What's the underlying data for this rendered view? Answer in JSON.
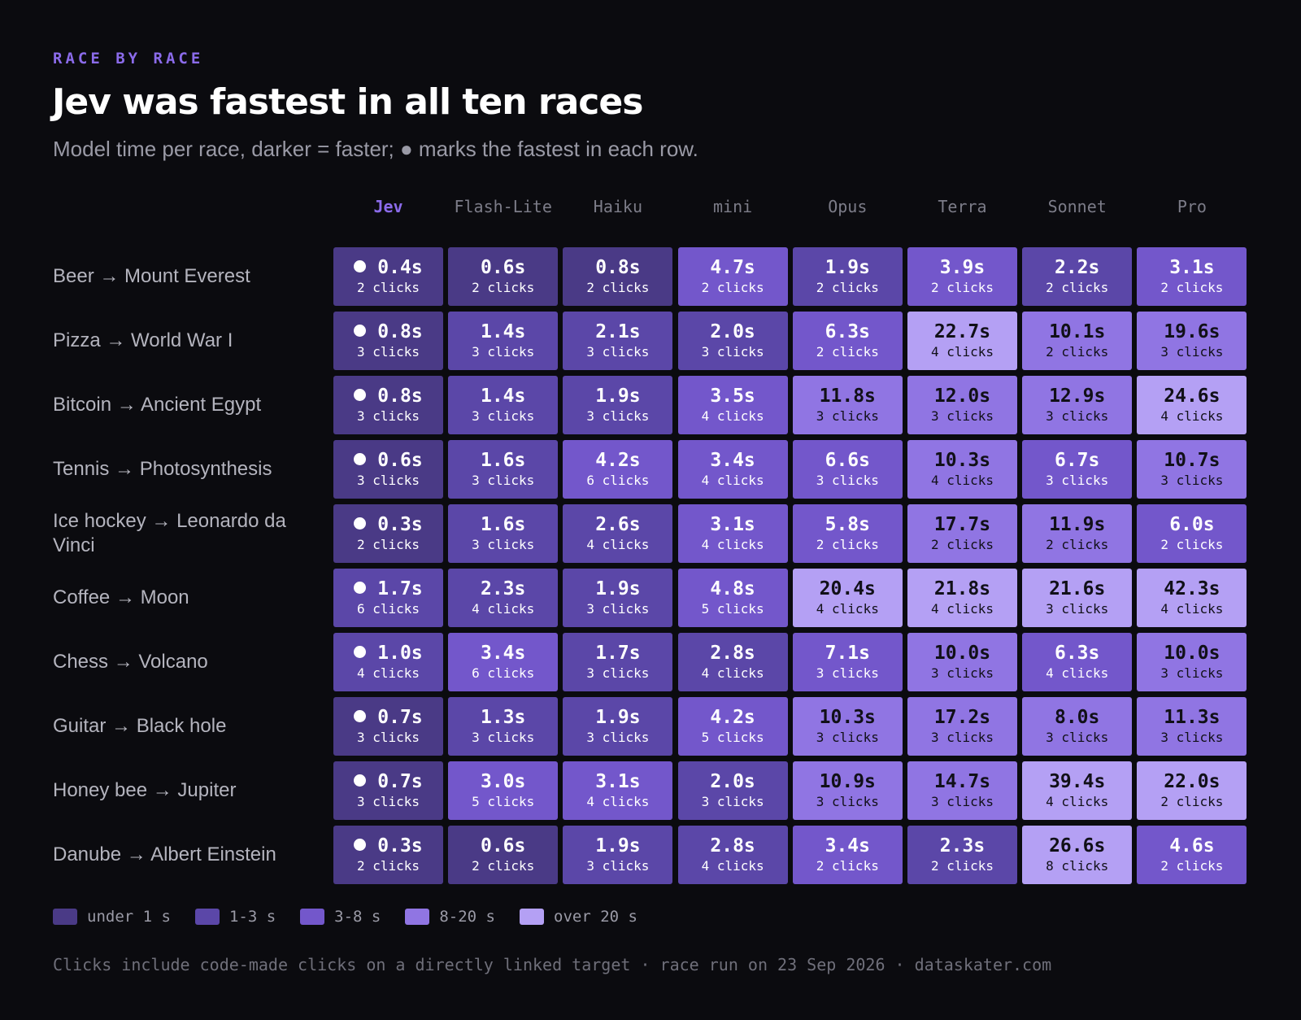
{
  "header": {
    "kicker": "RACE BY RACE",
    "title": "Jev was fastest in all ten races",
    "subtitle": "Model time per race, darker = faster; ● marks the fastest in each row."
  },
  "chart_data": {
    "type": "heatmap",
    "title": "Jev was fastest in all ten races",
    "subtitle": "Model time per race, darker = faster; ● marks the fastest in each row.",
    "columns": [
      "Jev",
      "Flash-Lite",
      "Haiku",
      "mini",
      "Opus",
      "Terra",
      "Sonnet",
      "Pro"
    ],
    "highlight_column": "Jev",
    "rows": [
      "Beer → Mount Everest",
      "Pizza → World War I",
      "Bitcoin → Ancient Egypt",
      "Tennis → Photosynthesis",
      "Ice hockey → Leonardo da Vinci",
      "Coffee → Moon",
      "Chess → Volcano",
      "Guitar → Black hole",
      "Honey bee → Jupiter",
      "Danube → Albert Einstein"
    ],
    "times_s": [
      [
        0.4,
        0.6,
        0.8,
        4.7,
        1.9,
        3.9,
        2.2,
        3.1
      ],
      [
        0.8,
        1.4,
        2.1,
        2.0,
        6.3,
        22.7,
        10.1,
        19.6
      ],
      [
        0.8,
        1.4,
        1.9,
        3.5,
        11.8,
        12.0,
        12.9,
        24.6
      ],
      [
        0.6,
        1.6,
        4.2,
        3.4,
        6.6,
        10.3,
        6.7,
        10.7
      ],
      [
        0.3,
        1.6,
        2.6,
        3.1,
        5.8,
        17.7,
        11.9,
        6.0
      ],
      [
        1.7,
        2.3,
        1.9,
        4.8,
        20.4,
        21.8,
        21.6,
        42.3
      ],
      [
        1.0,
        3.4,
        1.7,
        2.8,
        7.1,
        10.0,
        6.3,
        10.0
      ],
      [
        0.7,
        1.3,
        1.9,
        4.2,
        10.3,
        17.2,
        8.0,
        11.3
      ],
      [
        0.7,
        3.0,
        3.1,
        2.0,
        10.9,
        14.7,
        39.4,
        22.0
      ],
      [
        0.3,
        0.6,
        1.9,
        2.8,
        3.4,
        2.3,
        26.6,
        4.6
      ]
    ],
    "clicks": [
      [
        2,
        2,
        2,
        2,
        2,
        2,
        2,
        2
      ],
      [
        3,
        3,
        3,
        3,
        2,
        4,
        2,
        3
      ],
      [
        3,
        3,
        3,
        4,
        3,
        3,
        3,
        4
      ],
      [
        3,
        3,
        6,
        4,
        3,
        4,
        3,
        3
      ],
      [
        2,
        3,
        4,
        4,
        2,
        2,
        2,
        2
      ],
      [
        6,
        4,
        3,
        5,
        4,
        4,
        3,
        4
      ],
      [
        4,
        6,
        3,
        4,
        3,
        3,
        4,
        3
      ],
      [
        3,
        3,
        3,
        5,
        3,
        3,
        3,
        3
      ],
      [
        3,
        5,
        4,
        3,
        3,
        3,
        4,
        2
      ],
      [
        2,
        2,
        3,
        4,
        2,
        2,
        8,
        2
      ]
    ],
    "time_unit": "s",
    "clicks_unit": "clicks",
    "bins": [
      {
        "label": "under 1 s",
        "max": 1,
        "color": "#4a3a86",
        "text": "#ffffff"
      },
      {
        "label": "1-3 s",
        "max": 3,
        "color": "#5b47a8",
        "text": "#ffffff"
      },
      {
        "label": "3-8 s",
        "max": 8,
        "color": "#7357cb",
        "text": "#ffffff"
      },
      {
        "label": "8-20 s",
        "max": 20,
        "color": "#9075e3",
        "text": "#111018"
      },
      {
        "label": "over 20 s",
        "max": null,
        "color": "#b4a0f4",
        "text": "#111018"
      }
    ]
  },
  "footer": {
    "note": "Clicks include code-made clicks on a directly linked target · race run on 23 Sep 2026 · dataskater.com"
  },
  "colors": {
    "background": "#0b0b0f",
    "accent": "#8b6bea",
    "fastest_marker": "#ffffff"
  }
}
